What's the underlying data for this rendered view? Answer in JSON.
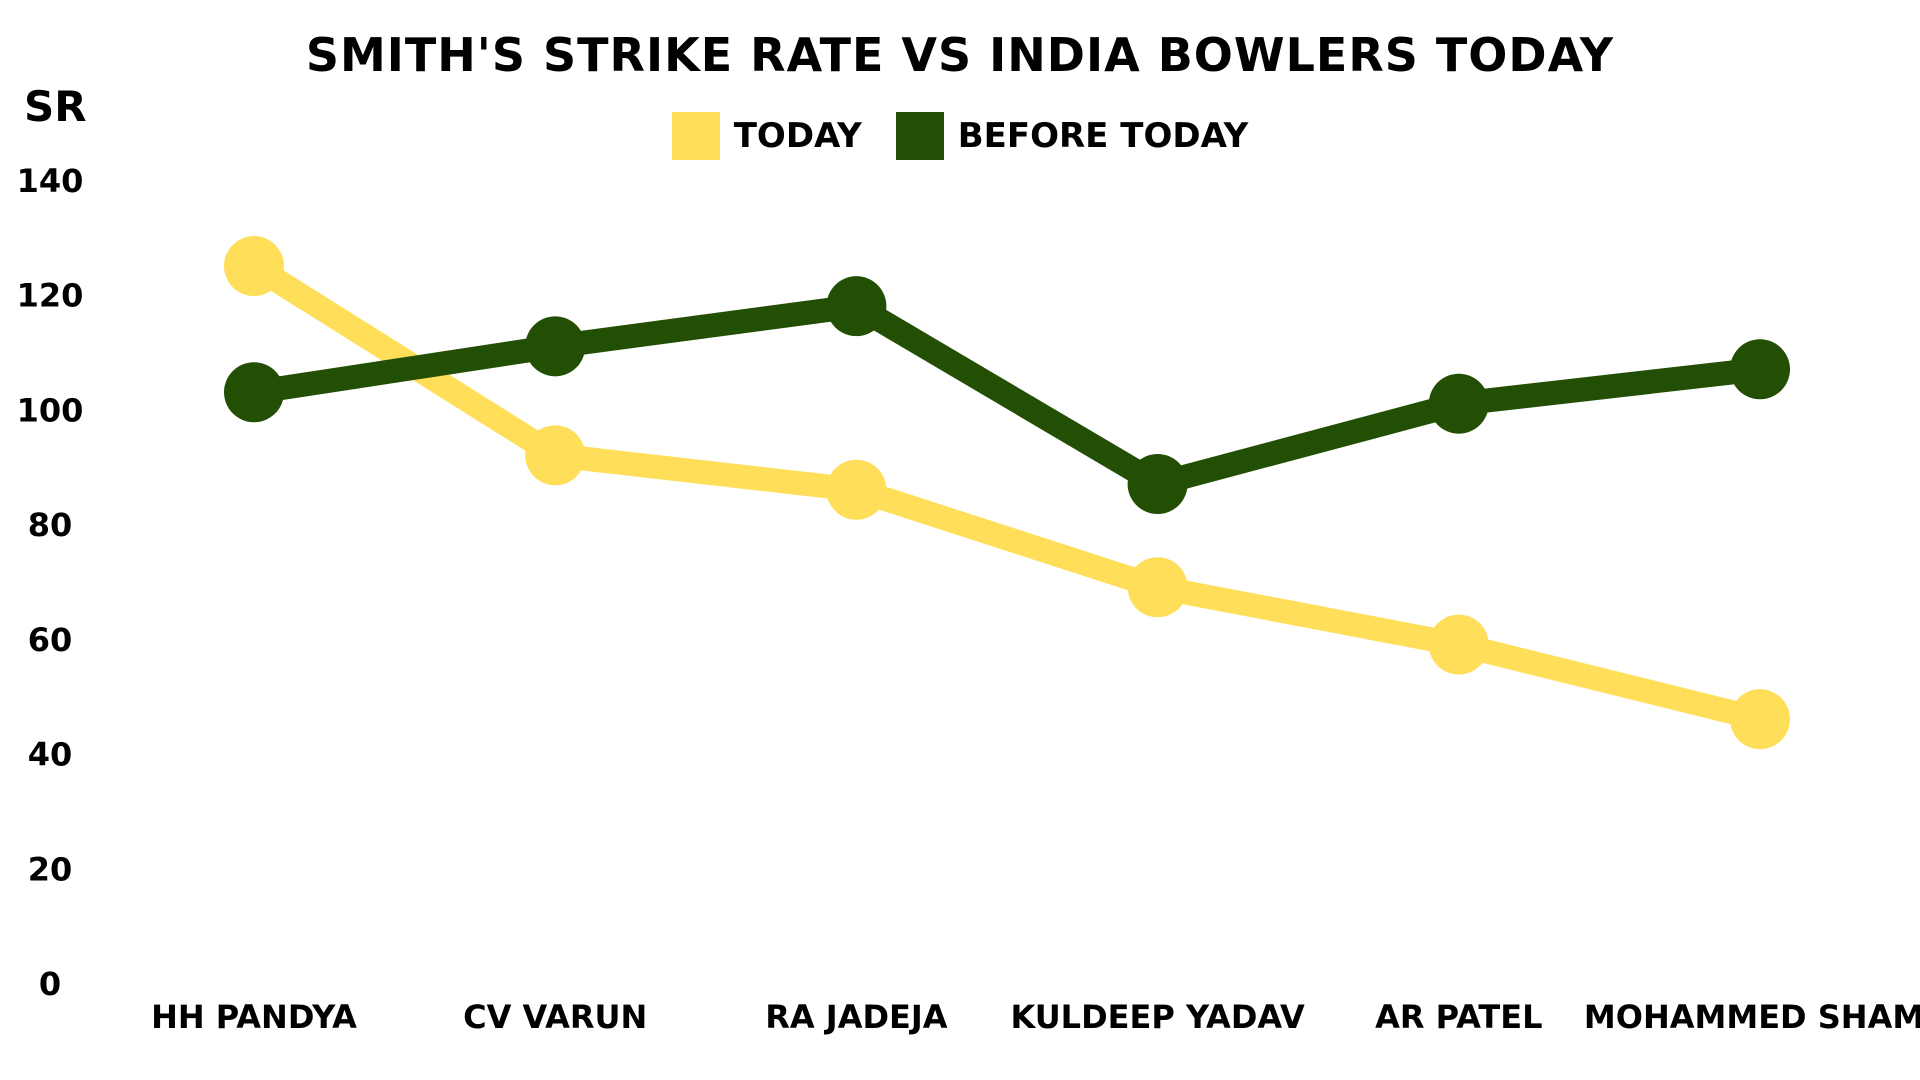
{
  "chart_data": {
    "type": "line",
    "title": "SMITH'S STRIKE RATE VS INDIA BOWLERS TODAY",
    "ylabel": "SR",
    "xlabel": "",
    "ylim": [
      0,
      140
    ],
    "yticks": [
      0,
      20,
      40,
      60,
      80,
      100,
      120,
      140
    ],
    "grid": false,
    "legend": "top-center",
    "categories": [
      "HH PANDYA",
      "CV VARUN",
      "RA JADEJA",
      "KULDEEP YADAV",
      "AR PATEL",
      "MOHAMMED SHAMI"
    ],
    "series": [
      {
        "name": "TODAY",
        "color": "#FFDE59",
        "values": [
          125,
          92,
          86,
          69,
          59,
          46
        ]
      },
      {
        "name": "BEFORE TODAY",
        "color": "#234F05",
        "values": [
          103,
          111,
          118,
          87,
          101,
          107
        ]
      }
    ]
  }
}
